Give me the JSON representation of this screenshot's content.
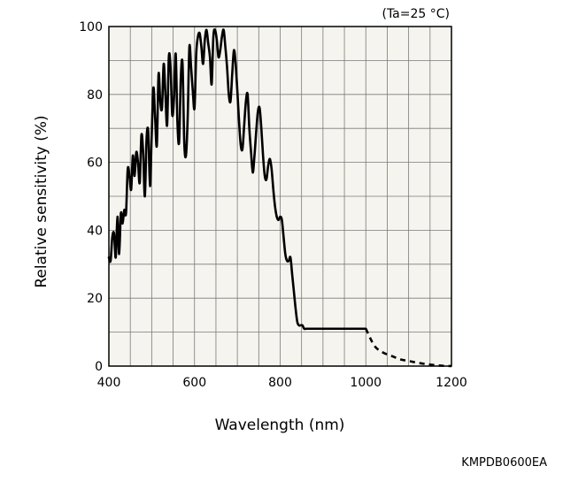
{
  "chart_data": {
    "type": "line",
    "title": "",
    "condition": "(Ta=25 °C)",
    "xlabel": "Wavelength (nm)",
    "ylabel": "Relative sensitivity (%)",
    "xlim": [
      400,
      1200
    ],
    "ylim": [
      0,
      100
    ],
    "xticks": [
      400,
      600,
      800,
      1000,
      1200
    ],
    "xtick_labels": [
      "400",
      "600",
      "800",
      "1000",
      "1200"
    ],
    "yticks": [
      0,
      20,
      40,
      60,
      80,
      100
    ],
    "ytick_labels": [
      "0",
      "20",
      "40",
      "60",
      "80",
      "100"
    ],
    "grid": true,
    "background_color": "#f6f4ee",
    "line_color": "#000000",
    "series": [
      {
        "style": "solid",
        "x": [
          400,
          404,
          408,
          412,
          416,
          420,
          424,
          428,
          432,
          436,
          440,
          444,
          448,
          452,
          456,
          460,
          464,
          468,
          472,
          476,
          480,
          484,
          488,
          492,
          496,
          500,
          504,
          508,
          512,
          516,
          520,
          524,
          528,
          532,
          536,
          540,
          544,
          548,
          552,
          556,
          560,
          564,
          568,
          572,
          576,
          580,
          584,
          588,
          592,
          596,
          600,
          604,
          608,
          612,
          616,
          620,
          624,
          628,
          632,
          636,
          640,
          644,
          648,
          652,
          656,
          660,
          664,
          668,
          672,
          676,
          680,
          684,
          688,
          692,
          696,
          700,
          704,
          708,
          712,
          716,
          720,
          724,
          728,
          732,
          736,
          740,
          744,
          748,
          752,
          756,
          760,
          764,
          768,
          772,
          776,
          780,
          784,
          788,
          792,
          796,
          800,
          804,
          808,
          812,
          816,
          820,
          824,
          828,
          832,
          836,
          840,
          844,
          848,
          852,
          856,
          860,
          864,
          868,
          872,
          876,
          880,
          884,
          888,
          892,
          896,
          900,
          904,
          908,
          912,
          916,
          920,
          924,
          928,
          932,
          936,
          940,
          944,
          948,
          952,
          956,
          960,
          964,
          968,
          972,
          976,
          980,
          984,
          988,
          992,
          996,
          1000
        ],
        "y": [
          32,
          31,
          38,
          39,
          32,
          44,
          33,
          45,
          42,
          46,
          45,
          58,
          56,
          52,
          62,
          56,
          63,
          60,
          54,
          68,
          63,
          50,
          67,
          69,
          53,
          68,
          82,
          73,
          65,
          86,
          78,
          76,
          89,
          80,
          71,
          91,
          88,
          74,
          79,
          92,
          72,
          66,
          85,
          89,
          66,
          62,
          73,
          94,
          88,
          81,
          76,
          92,
          97,
          98,
          94,
          89,
          96,
          99,
          95,
          91,
          83,
          97,
          99,
          96,
          91,
          93,
          97,
          99,
          94,
          88,
          80,
          78,
          86,
          93,
          89,
          81,
          72,
          65,
          64,
          71,
          78,
          80,
          70,
          63,
          57,
          62,
          69,
          75,
          76,
          70,
          62,
          56,
          55,
          59,
          61,
          58,
          52,
          47,
          44,
          43,
          44,
          43,
          38,
          33,
          31,
          31,
          32,
          27,
          22,
          17,
          13,
          12,
          12,
          12,
          11,
          11,
          11,
          11,
          11,
          11,
          11,
          11,
          11,
          11,
          11,
          11,
          11,
          11,
          11,
          11,
          11,
          11,
          11,
          11,
          11,
          11,
          11,
          11,
          11,
          11,
          11,
          11,
          11,
          11,
          11,
          11,
          11,
          11,
          11,
          11,
          11
        ]
      },
      {
        "style": "dashed",
        "x": [
          1000,
          1020,
          1040,
          1060,
          1080,
          1100,
          1120,
          1140,
          1160,
          1180,
          1200
        ],
        "y": [
          11,
          6,
          4,
          3,
          2,
          1.5,
          1,
          0.6,
          0.3,
          0.1,
          0
        ]
      }
    ]
  },
  "doc_code": "KMPDB0600EA"
}
